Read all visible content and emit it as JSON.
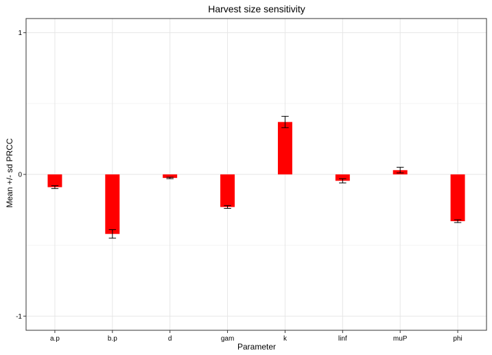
{
  "chart_data": {
    "type": "bar",
    "title": "Harvest size sensitivity",
    "xlabel": "Parameter",
    "ylabel": "Mean +/- sd PRCC",
    "categories": [
      "a.p",
      "b.p",
      "d",
      "gam",
      "k",
      "linf",
      "muP",
      "phi"
    ],
    "values": [
      -0.09,
      -0.42,
      -0.025,
      -0.23,
      0.37,
      -0.045,
      0.03,
      -0.33
    ],
    "sd": [
      0.01,
      0.03,
      0.005,
      0.01,
      0.04,
      0.015,
      0.02,
      0.01
    ],
    "ylim": [
      -1.1,
      1.1
    ],
    "yticks": [
      "-1",
      "0",
      "1"
    ],
    "ytick_values": [
      -1,
      0,
      1
    ],
    "grid": true,
    "bar_color": "#ff0000"
  }
}
